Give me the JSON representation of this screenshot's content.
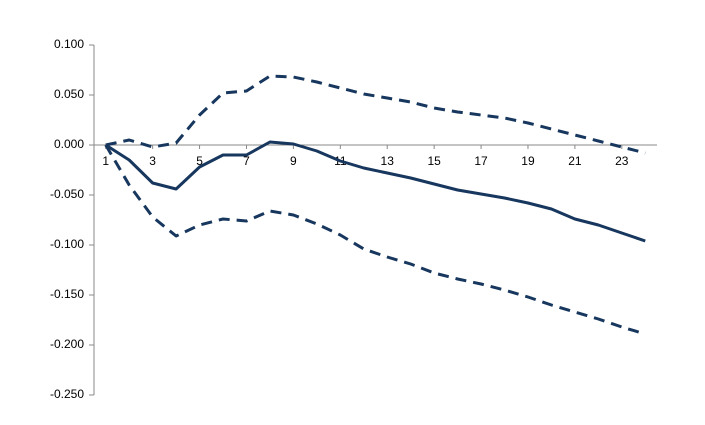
{
  "chart_data": {
    "type": "line",
    "x": [
      1,
      2,
      3,
      4,
      5,
      6,
      7,
      8,
      9,
      10,
      11,
      12,
      13,
      14,
      15,
      16,
      17,
      18,
      19,
      20,
      21,
      22,
      23,
      24
    ],
    "xlim": [
      0.5,
      24.5
    ],
    "xticks": [
      1,
      3,
      5,
      7,
      9,
      11,
      13,
      15,
      17,
      19,
      21,
      23
    ],
    "ylim": [
      -0.25,
      0.1
    ],
    "yticks": [
      {
        "value": 0.1,
        "label": "0.100"
      },
      {
        "value": 0.05,
        "label": "0.050"
      },
      {
        "value": 0,
        "label": "0.000"
      },
      {
        "value": -0.05,
        "label": "-0.050"
      },
      {
        "value": -0.1,
        "label": "-0.100"
      },
      {
        "value": -0.15,
        "label": "-0.150"
      },
      {
        "value": -0.2,
        "label": "-0.200"
      },
      {
        "value": -0.25,
        "label": "-0.250"
      }
    ],
    "grid": false,
    "series": [
      {
        "color": "#17375e",
        "dash": false,
        "values": [
          0,
          -0.015,
          -0.038,
          -0.044,
          -0.022,
          -0.01,
          -0.01,
          0.003,
          0.001,
          -0.006,
          -0.016,
          -0.023,
          -0.028,
          -0.033,
          -0.039,
          -0.045,
          -0.049,
          -0.053,
          -0.058,
          -0.064,
          -0.074,
          -0.08,
          -0.088,
          -0.096
        ]
      },
      {
        "color": "#17375e",
        "dash": true,
        "values": [
          0,
          0.005,
          -0.002,
          0.002,
          0.03,
          0.052,
          0.054,
          0.069,
          0.068,
          0.063,
          0.057,
          0.051,
          0.047,
          0.043,
          0.037,
          0.033,
          0.03,
          0.027,
          0.022,
          0.016,
          0.01,
          0.004,
          -0.002,
          -0.008
        ]
      },
      {
        "color": "#17375e",
        "dash": true,
        "values": [
          0,
          -0.04,
          -0.072,
          -0.091,
          -0.08,
          -0.074,
          -0.076,
          -0.066,
          -0.07,
          -0.079,
          -0.09,
          -0.104,
          -0.112,
          -0.119,
          -0.128,
          -0.134,
          -0.139,
          -0.145,
          -0.152,
          -0.16,
          -0.167,
          -0.174,
          -0.182,
          -0.189
        ]
      }
    ]
  }
}
